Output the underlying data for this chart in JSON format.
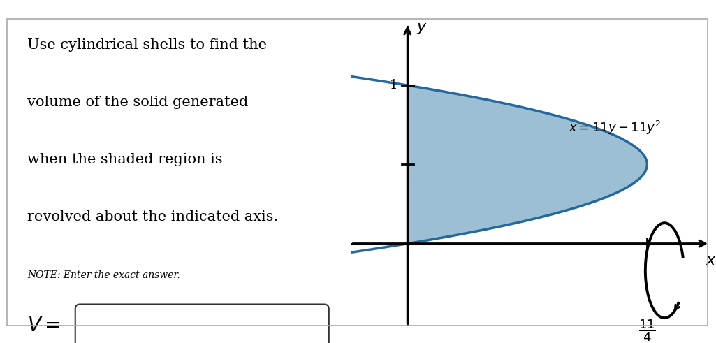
{
  "fig_width": 10.25,
  "fig_height": 4.91,
  "bg_color": "#ffffff",
  "left_panel": {
    "title_lines": [
      "Use cylindrical shells to find the",
      "volume of the solid generated",
      "when the shaded region is",
      "revolved about the indicated axis."
    ],
    "note": "NOTE: Enter the exact answer.",
    "title_fontsize": 15,
    "note_fontsize": 10,
    "V_fontsize": 20
  },
  "right_panel": {
    "fill_color": "#9dbfd4",
    "fill_alpha": 1.0,
    "curve_color": "#2468a0",
    "curve_linewidth": 2.5,
    "xlim": [
      -0.65,
      3.5
    ],
    "ylim": [
      -0.52,
      1.42
    ]
  }
}
